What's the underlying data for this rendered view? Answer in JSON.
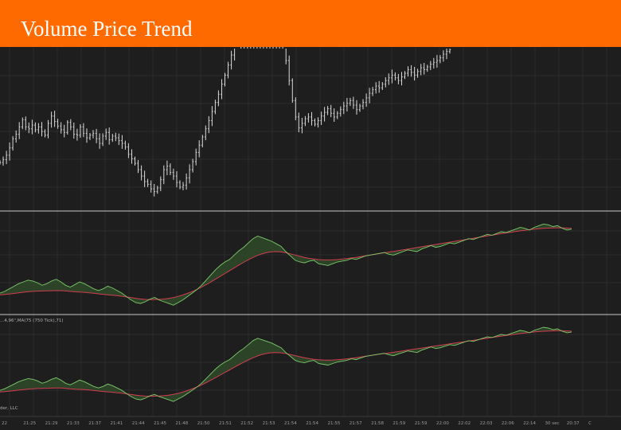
{
  "title": "Volume Price Trend",
  "colors": {
    "banner": "#ff6a00",
    "background": "#1e1e1e",
    "candle": "#d9d9d9",
    "vpt": "#7cc86a",
    "ma": "#d23c50",
    "fill": "#2f4a2a",
    "grid": "#3a3a3a",
    "separator": "#c8c8c8"
  },
  "indicator_label": "...4,96\",MA(75 (750 Tick),71)",
  "footer_fragment": "der, LLC",
  "chart_data": [
    {
      "type": "candlestick",
      "pane": "price",
      "title": "",
      "grid": true,
      "x_ticks": [
        "22",
        "21:25",
        "21:29",
        "21:33",
        "21:37",
        "21:41",
        "21:44",
        "21:45",
        "21:48",
        "21:50",
        "21:51",
        "21:52",
        "21:53",
        "21:54",
        "21:54",
        "21:55",
        "21:57",
        "21:58",
        "21:59",
        "21:59",
        "22:00",
        "22:02",
        "22:03",
        "22:06",
        "22:14",
        "30 sec",
        "20:37",
        "C"
      ],
      "close": [
        142,
        145,
        150,
        158,
        168,
        173,
        181,
        189,
        181,
        179,
        183,
        178,
        181,
        176,
        172,
        185,
        193,
        187,
        182,
        178,
        175,
        186,
        181,
        173,
        172,
        181,
        174,
        169,
        172,
        174,
        168,
        163,
        171,
        175,
        167,
        171,
        169,
        166,
        163,
        159,
        151,
        146,
        141,
        134,
        127,
        121,
        118,
        113,
        110,
        114,
        123,
        134,
        138,
        131,
        127,
        120,
        115,
        117,
        125,
        134,
        143,
        153,
        161,
        170,
        179,
        188,
        198,
        208,
        217,
        228,
        238,
        249,
        260,
        270,
        279,
        288,
        296,
        303,
        309,
        300,
        292,
        297,
        305,
        310,
        301,
        294,
        286,
        279,
        272,
        254,
        232,
        210,
        192,
        180,
        185,
        190,
        192,
        188,
        184,
        188,
        193,
        197,
        201,
        196,
        192,
        196,
        200,
        204,
        207,
        210,
        205,
        200,
        204,
        208,
        213,
        218,
        222,
        226,
        224,
        228,
        232,
        235,
        238,
        235,
        232,
        236,
        240,
        244,
        241,
        238,
        242,
        246,
        244,
        247,
        250,
        252,
        254,
        257,
        261,
        264,
        266
      ]
    },
    {
      "type": "line",
      "pane": "vpt-1",
      "series": [
        {
          "values": [
            22,
            24,
            27,
            30,
            33,
            35,
            37,
            36,
            34,
            31,
            33,
            36,
            38,
            35,
            31,
            29,
            32,
            35,
            33,
            30,
            27,
            25,
            27,
            30,
            28,
            25,
            22,
            18,
            14,
            11,
            10,
            12,
            15,
            17,
            14,
            12,
            10,
            8,
            11,
            14,
            18,
            22,
            26,
            31,
            37,
            43,
            49,
            54,
            58,
            61,
            66,
            71,
            75,
            80,
            85,
            88,
            86,
            84,
            82,
            79,
            76,
            70,
            65,
            60,
            58,
            57,
            59,
            60,
            56,
            55,
            54,
            56,
            58,
            59,
            60,
            62,
            61,
            63,
            65,
            66,
            67,
            68,
            69,
            67,
            66,
            68,
            70,
            72,
            71,
            70,
            73,
            75,
            77,
            75,
            76,
            78,
            80,
            79,
            81,
            83,
            85,
            84,
            86,
            88,
            90,
            89,
            91,
            93,
            92,
            94,
            96,
            98,
            97,
            95,
            98,
            100,
            102,
            101,
            99,
            100,
            97,
            95,
            96
          ]
        },
        {
          "values": [
            20,
            20.5,
            21,
            21.6,
            22.3,
            23,
            23.6,
            24,
            24.3,
            24.5,
            24.6,
            24.8,
            25,
            24.9,
            24.5,
            24,
            23.5,
            23.2,
            22.9,
            22.4,
            21.8,
            21.2,
            20.6,
            20.1,
            19.6,
            19,
            18.4,
            17.6,
            16.8,
            16,
            15.2,
            14.7,
            14.5,
            14.6,
            14.8,
            15.2,
            15.9,
            16.9,
            18.2,
            19.8,
            21.7,
            23.8,
            26.2,
            28.9,
            31.8,
            34.9,
            38.1,
            41.4,
            44.7,
            48,
            51.3,
            54.5,
            57.6,
            60.6,
            63.3,
            65.7,
            67.6,
            69,
            69.8,
            70,
            69.6,
            68.7,
            67.4,
            66,
            64.6,
            63.3,
            62.2,
            61.4,
            60.8,
            60.5,
            60.4,
            60.5,
            60.8,
            61.3,
            61.9,
            62.6,
            63.4,
            64.3,
            65.2,
            66.1,
            67,
            67.8,
            68.7,
            69.5,
            70.3,
            71.2,
            72,
            72.9,
            73.8,
            74.7,
            75.6,
            76.5,
            77.4,
            78.3,
            79.2,
            80.1,
            81,
            81.9,
            82.8,
            83.6,
            84.5,
            85.4,
            86.3,
            87.2,
            88.1,
            89,
            89.9,
            90.8,
            91.6,
            92.4,
            93.2,
            94,
            94.7,
            95.4,
            96,
            96.5,
            96.9,
            97.2,
            97.4,
            97.5,
            97.5,
            97.3,
            97
          ]
        }
      ]
    },
    {
      "type": "line",
      "pane": "vpt-2",
      "series": [
        {
          "values": [
            22,
            24,
            27,
            30,
            33,
            35,
            37,
            36,
            34,
            31,
            33,
            36,
            38,
            35,
            31,
            29,
            32,
            35,
            33,
            30,
            27,
            25,
            27,
            30,
            28,
            25,
            22,
            18,
            14,
            11,
            10,
            12,
            15,
            17,
            14,
            12,
            10,
            8,
            11,
            14,
            18,
            22,
            26,
            31,
            37,
            43,
            49,
            54,
            58,
            61,
            66,
            71,
            75,
            80,
            85,
            88,
            86,
            84,
            82,
            79,
            76,
            70,
            65,
            60,
            58,
            57,
            59,
            60,
            56,
            55,
            54,
            56,
            58,
            59,
            60,
            62,
            61,
            63,
            65,
            66,
            67,
            68,
            69,
            67,
            66,
            68,
            70,
            72,
            71,
            70,
            73,
            75,
            77,
            75,
            76,
            78,
            80,
            79,
            81,
            83,
            85,
            84,
            86,
            88,
            90,
            89,
            91,
            93,
            92,
            94,
            96,
            98,
            97,
            95,
            98,
            100,
            102,
            101,
            99,
            100,
            97,
            95,
            96
          ]
        },
        {
          "values": [
            20,
            20.5,
            21,
            21.6,
            22.3,
            23,
            23.6,
            24,
            24.3,
            24.5,
            24.6,
            24.8,
            25,
            24.9,
            24.5,
            24,
            23.5,
            23.2,
            22.9,
            22.4,
            21.8,
            21.2,
            20.6,
            20.1,
            19.6,
            19,
            18.4,
            17.6,
            16.8,
            16,
            15.2,
            14.7,
            14.5,
            14.6,
            14.8,
            15.2,
            15.9,
            16.9,
            18.2,
            19.8,
            21.7,
            23.8,
            26.2,
            28.9,
            31.8,
            34.9,
            38.1,
            41.4,
            44.7,
            48,
            51.3,
            54.5,
            57.6,
            60.6,
            63.3,
            65.7,
            67.6,
            69,
            69.8,
            70,
            69.6,
            68.7,
            67.4,
            66,
            64.6,
            63.3,
            62.2,
            61.4,
            60.8,
            60.5,
            60.4,
            60.5,
            60.8,
            61.3,
            61.9,
            62.6,
            63.4,
            64.3,
            65.2,
            66.1,
            67,
            67.8,
            68.7,
            69.5,
            70.3,
            71.2,
            72,
            72.9,
            73.8,
            74.7,
            75.6,
            76.5,
            77.4,
            78.3,
            79.2,
            80.1,
            81,
            81.9,
            82.8,
            83.6,
            84.5,
            85.4,
            86.3,
            87.2,
            88.1,
            89,
            89.9,
            90.8,
            91.6,
            92.4,
            93.2,
            94,
            94.7,
            95.4,
            96,
            96.5,
            96.9,
            97.2,
            97.4,
            97.5,
            97.5,
            97.3,
            97
          ]
        }
      ]
    }
  ]
}
